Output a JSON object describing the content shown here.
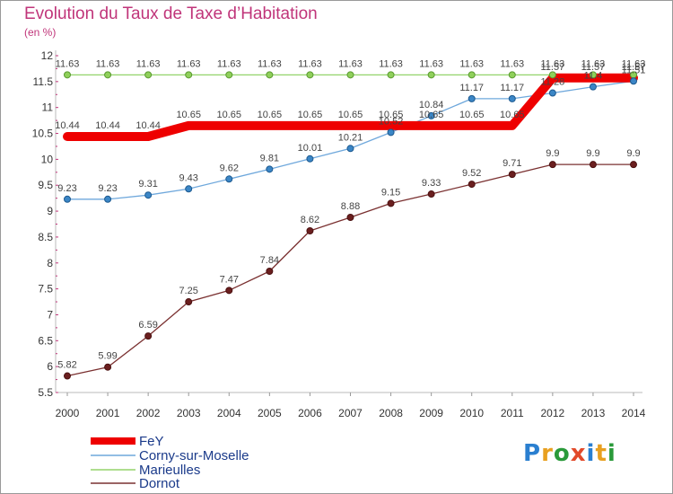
{
  "header": {
    "title": "Evolution du Taux de Taxe d’Habitation",
    "subtitle": "(en %)"
  },
  "logo": {
    "text": "Proxiti",
    "letter_colors": [
      "#2a7fd0",
      "#e8a020",
      "#2a9a3a",
      "#e24a2a",
      "#2a7fd0",
      "#e8a020",
      "#2a9a3a"
    ]
  },
  "chart_data": {
    "type": "line",
    "x": [
      2000,
      2001,
      2002,
      2003,
      2004,
      2005,
      2006,
      2007,
      2008,
      2009,
      2010,
      2011,
      2012,
      2013,
      2014
    ],
    "xlabel": "",
    "ylabel": "",
    "ylim": [
      5.5,
      12
    ],
    "yticks": [
      5.5,
      6,
      6.5,
      7,
      7.5,
      8,
      8.5,
      9,
      9.5,
      10,
      10.5,
      11,
      11.5,
      12
    ],
    "grid": false,
    "legend_position": "bottom-left",
    "series": [
      {
        "name": "FeY",
        "color": "#ee0000",
        "values": [
          10.44,
          10.44,
          10.44,
          10.65,
          10.65,
          10.65,
          10.65,
          10.65,
          10.65,
          10.65,
          10.65,
          10.65,
          11.57,
          11.57,
          11.57
        ],
        "labels": [
          "10.44",
          "10.44",
          "10.44",
          "10.65",
          "10.65",
          "10.65",
          "10.65",
          "10.65",
          "10.65",
          "10.65",
          "10.65",
          "10.65",
          "11.57",
          "11.57",
          "11.57"
        ]
      },
      {
        "name": "Corny-sur-Moselle",
        "color": "#6fa8dc",
        "values": [
          9.23,
          9.23,
          9.31,
          9.43,
          9.62,
          9.81,
          10.01,
          10.21,
          10.52,
          10.84,
          11.17,
          11.17,
          11.28,
          11.4,
          11.51
        ],
        "labels": [
          "9.23",
          "9.23",
          "9.31",
          "9.43",
          "9.62",
          "9.81",
          "10.01",
          "10.21",
          "10.52",
          "10.84",
          "11.17",
          "11.17",
          "11.28",
          "11.4",
          "11.51"
        ]
      },
      {
        "name": "Marieulles",
        "color": "#93d46a",
        "values": [
          11.63,
          11.63,
          11.63,
          11.63,
          11.63,
          11.63,
          11.63,
          11.63,
          11.63,
          11.63,
          11.63,
          11.63,
          11.63,
          11.63,
          11.63
        ],
        "labels": [
          "11.63",
          "11.63",
          "11.63",
          "11.63",
          "11.63",
          "11.63",
          "11.63",
          "11.63",
          "11.63",
          "11.63",
          "11.63",
          "11.63",
          "11.63",
          "11.63",
          "11.63"
        ]
      },
      {
        "name": "Dornot",
        "color": "#7a3030",
        "values": [
          5.82,
          5.99,
          6.59,
          7.25,
          7.47,
          7.84,
          8.62,
          8.88,
          9.15,
          9.33,
          9.52,
          9.71,
          9.9,
          9.9,
          9.9
        ],
        "labels": [
          "5.82",
          "5.99",
          "6.59",
          "7.25",
          "7.47",
          "7.84",
          "8.62",
          "8.88",
          "9.15",
          "9.33",
          "9.52",
          "9.71",
          "9.9",
          "9.9",
          "9.9"
        ]
      }
    ]
  }
}
